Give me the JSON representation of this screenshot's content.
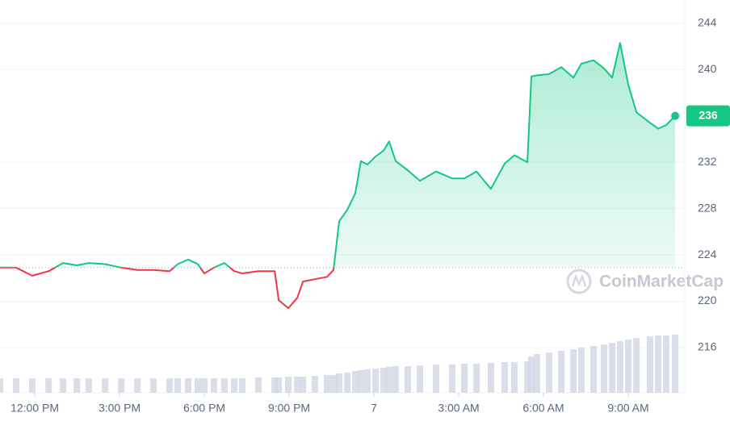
{
  "chart_data": {
    "type": "line",
    "x": [
      10.77,
      11.34,
      11.91,
      12.49,
      13.0,
      13.49,
      13.91,
      14.49,
      15.06,
      15.63,
      16.2,
      16.77,
      17.06,
      17.43,
      17.77,
      18.0,
      18.34,
      18.71,
      19.06,
      19.34,
      19.91,
      20.49,
      20.63,
      20.97,
      21.29,
      21.49,
      21.91,
      22.34,
      22.57,
      22.77,
      23.06,
      23.34,
      23.54,
      23.77,
      24.06,
      24.34,
      24.54,
      24.77,
      25.2,
      25.63,
      26.2,
      26.77,
      27.2,
      27.63,
      28.14,
      28.63,
      28.97,
      29.43,
      29.57,
      29.77,
      30.2,
      30.63,
      31.06,
      31.34,
      31.77,
      32.14,
      32.43,
      32.71,
      33.0,
      33.29,
      33.77,
      34.06,
      34.34,
      34.66
    ],
    "values": [
      222.9,
      222.9,
      222.2,
      222.6,
      223.3,
      223.1,
      223.3,
      223.2,
      222.9,
      222.7,
      222.7,
      222.6,
      223.2,
      223.6,
      223.2,
      222.4,
      222.9,
      223.3,
      222.6,
      222.4,
      222.6,
      222.6,
      220.1,
      219.4,
      220.3,
      221.7,
      221.9,
      222.1,
      222.7,
      226.9,
      227.9,
      229.3,
      232.1,
      231.8,
      232.5,
      233.0,
      233.8,
      232.1,
      231.3,
      230.4,
      231.2,
      230.6,
      230.6,
      231.2,
      229.7,
      231.9,
      232.6,
      232.0,
      239.4,
      239.5,
      239.6,
      240.2,
      239.3,
      240.5,
      240.8,
      240.1,
      239.3,
      242.3,
      238.7,
      236.3,
      235.4,
      234.9,
      235.2,
      236.0
    ],
    "volume": [
      18,
      18,
      18,
      18,
      18,
      18,
      18,
      18,
      18,
      18,
      18,
      18,
      18,
      18,
      18,
      18,
      18,
      18,
      18,
      18,
      19,
      19,
      19,
      20,
      20,
      20,
      21,
      22,
      22,
      24,
      25,
      27,
      28,
      29,
      30,
      31,
      32,
      33,
      33,
      34,
      35,
      35,
      36,
      36,
      37,
      38,
      38,
      39,
      45,
      48,
      50,
      52,
      54,
      56,
      58,
      60,
      62,
      64,
      66,
      68,
      70,
      71,
      71,
      72
    ],
    "baseline": 222.9,
    "up_color": "#16c784",
    "down_color": "#ea3943",
    "volume_color": "#cfd6e4",
    "last_price": 236,
    "xlim": [
      10.77,
      35
    ],
    "xticks": [
      {
        "value": 12,
        "label": "12:00 PM"
      },
      {
        "value": 15,
        "label": "3:00 PM"
      },
      {
        "value": 18,
        "label": "6:00 PM"
      },
      {
        "value": 21,
        "label": "9:00 PM"
      },
      {
        "value": 24,
        "label": "7"
      },
      {
        "value": 27,
        "label": "3:00 AM"
      },
      {
        "value": 30,
        "label": "6:00 AM"
      },
      {
        "value": 33,
        "label": "9:00 AM"
      }
    ],
    "ylim": [
      212.1,
      246
    ],
    "yticks": [
      216,
      220,
      224,
      228,
      232,
      240,
      244
    ],
    "grid": true,
    "watermark": "CoinMarketCap"
  }
}
